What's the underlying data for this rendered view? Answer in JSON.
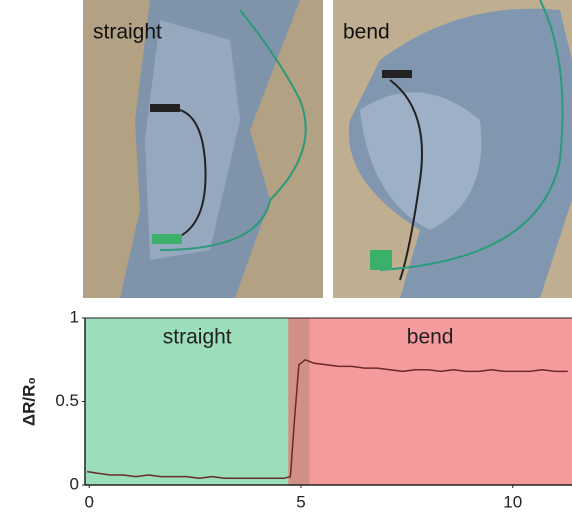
{
  "photos": [
    {
      "label": "straight"
    },
    {
      "label": "bend"
    }
  ],
  "chart_data": {
    "type": "line",
    "y_label": "ΔR/R₀",
    "xlim": [
      -0.1,
      11.4
    ],
    "xticks": [
      0,
      5,
      10
    ],
    "ylim": [
      0,
      1
    ],
    "yticks": [
      0,
      0.5,
      1
    ],
    "regions": [
      {
        "label": "straight",
        "start": -0.1,
        "end": 5.2,
        "color": "rgba(90,200,140,0.6)"
      },
      {
        "label": "bend",
        "start": 4.7,
        "end": 11.4,
        "color": "rgba(240,100,105,0.65)"
      }
    ],
    "color": "#6b2a2a",
    "x": [
      -0.05,
      0.2,
      0.5,
      0.8,
      1.1,
      1.4,
      1.7,
      2.0,
      2.3,
      2.6,
      2.9,
      3.2,
      3.5,
      3.8,
      4.1,
      4.4,
      4.6,
      4.75,
      4.85,
      4.95,
      5.1,
      5.3,
      5.6,
      5.9,
      6.2,
      6.5,
      6.8,
      7.1,
      7.4,
      7.7,
      8.0,
      8.3,
      8.6,
      8.9,
      9.2,
      9.5,
      9.8,
      10.1,
      10.4,
      10.7,
      11.0,
      11.3
    ],
    "values": [
      0.08,
      0.07,
      0.06,
      0.06,
      0.05,
      0.06,
      0.05,
      0.05,
      0.05,
      0.04,
      0.05,
      0.04,
      0.04,
      0.04,
      0.04,
      0.04,
      0.04,
      0.05,
      0.4,
      0.72,
      0.75,
      0.73,
      0.72,
      0.71,
      0.71,
      0.7,
      0.7,
      0.69,
      0.68,
      0.69,
      0.69,
      0.68,
      0.69,
      0.68,
      0.68,
      0.69,
      0.68,
      0.68,
      0.68,
      0.69,
      0.68,
      0.68
    ]
  }
}
